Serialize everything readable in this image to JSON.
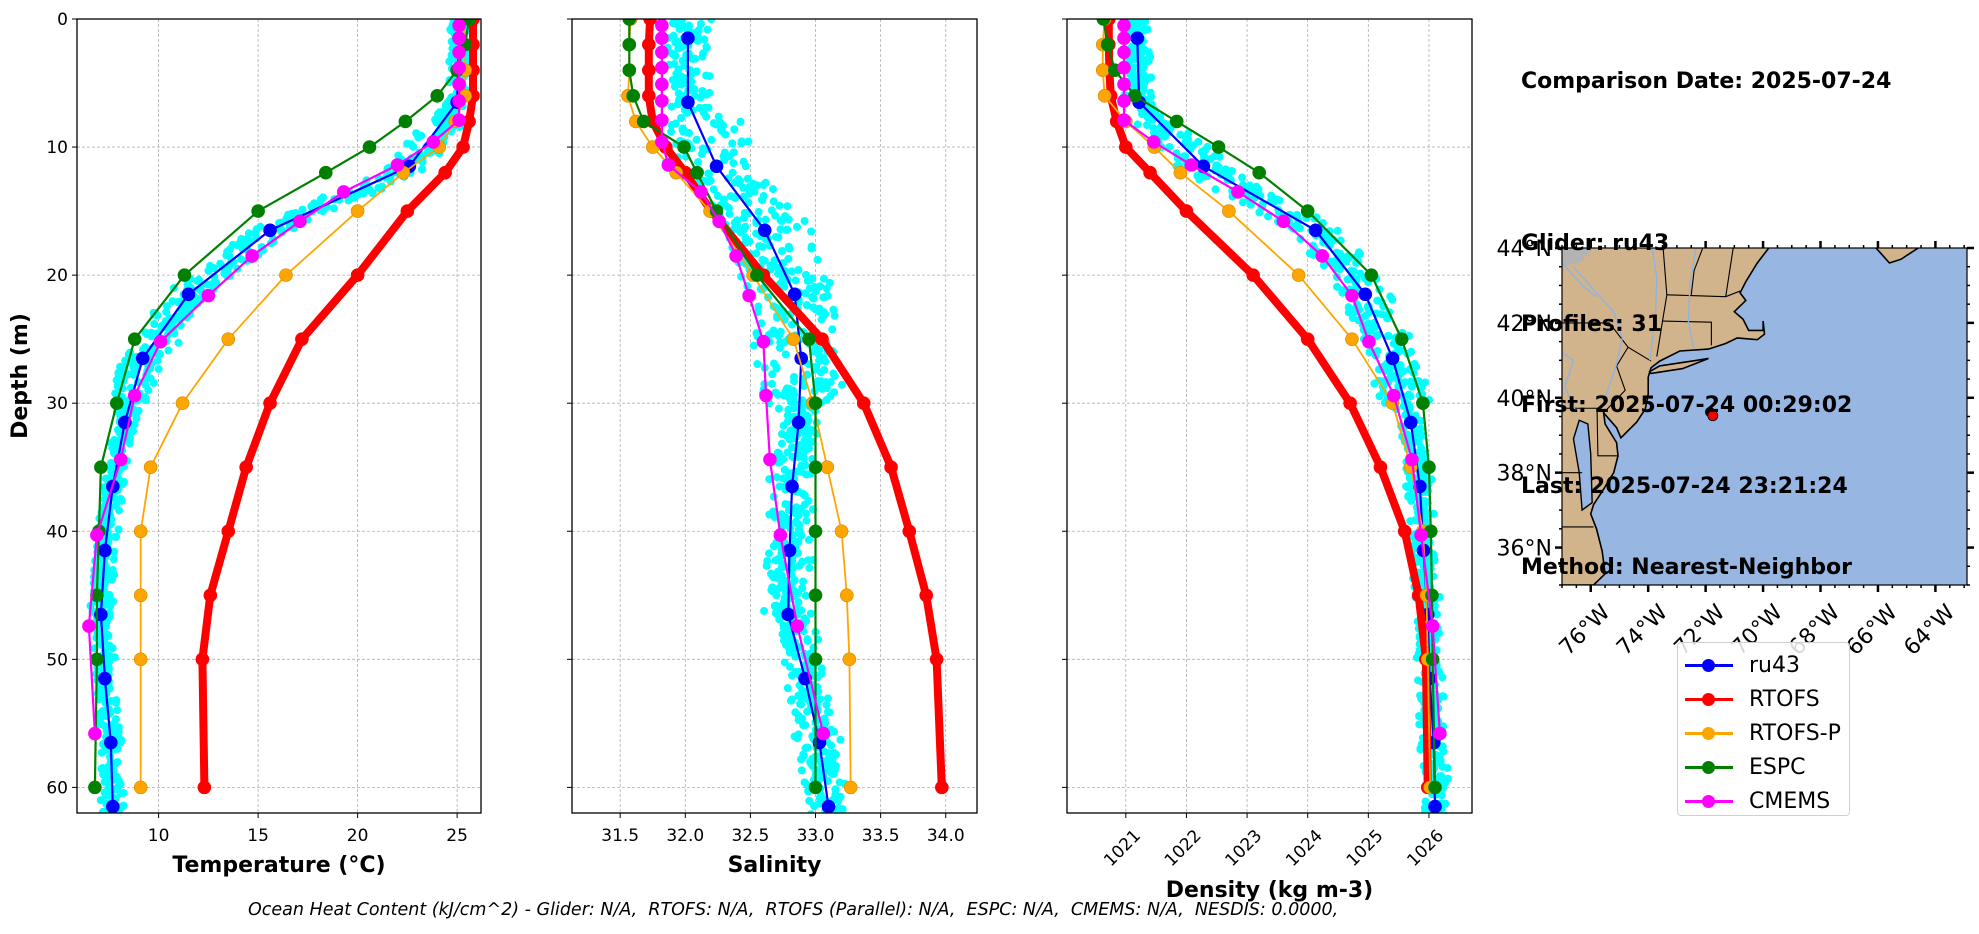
{
  "info": {
    "comparison_date": "Comparison Date: 2025-07-24",
    "glider": "Glider: ru43",
    "profiles": "Profiles: 31",
    "first": "First: 2025-07-24 00:29:02",
    "last": "Last: 2025-07-24 23:21:24",
    "method": "Method: Nearest-Neighbor"
  },
  "footer": "Ocean Heat Content (kJ/cm^2) - Glider: N/A,  RTOFS: N/A,  RTOFS (Parallel): N/A,  ESPC: N/A,  CMEMS: N/A,  NESDIS: 0.0000,",
  "legend": [
    {
      "label": "ru43",
      "color": "#0000ff"
    },
    {
      "label": "RTOFS",
      "color": "#ff0000"
    },
    {
      "label": "RTOFS-P",
      "color": "#ffa500"
    },
    {
      "label": "ESPC",
      "color": "#008000"
    },
    {
      "label": "CMEMS",
      "color": "#ff00ff"
    }
  ],
  "colors": {
    "glider_scatter": "#00ffff",
    "land": "#d2b48c",
    "ocean": "#97b6e1",
    "grid": "#b0b0b0"
  },
  "chart_data": [
    {
      "type": "line",
      "title": "",
      "xlabel": "Temperature (°C)",
      "ylabel": "Depth (m)",
      "xlim": [
        5.9,
        26.2
      ],
      "ylim": [
        62,
        0
      ],
      "y_inverted": true,
      "grid": true,
      "xticks": [
        10,
        15,
        20,
        25
      ],
      "yticks": [
        0,
        10,
        20,
        30,
        40,
        50,
        60
      ],
      "series": [
        {
          "name": "ru43",
          "depth": [
            1.5,
            6.5,
            11.5,
            16.5,
            21.5,
            26.5,
            31.5,
            36.5,
            41.5,
            46.5,
            51.5,
            56.5,
            61.5
          ],
          "values": [
            25.1,
            25.0,
            22.6,
            15.6,
            11.5,
            9.2,
            8.3,
            7.7,
            7.3,
            7.1,
            7.3,
            7.6,
            7.7
          ]
        },
        {
          "name": "RTOFS",
          "depth": [
            0,
            2,
            4,
            6,
            8,
            10,
            12,
            15,
            20,
            25,
            30,
            35,
            40,
            45,
            50,
            60
          ],
          "values": [
            25.8,
            25.8,
            25.8,
            25.8,
            25.6,
            25.3,
            24.4,
            22.5,
            20.0,
            17.2,
            15.6,
            14.4,
            13.5,
            12.6,
            12.2,
            12.3
          ]
        },
        {
          "name": "RTOFS-P",
          "depth": [
            0,
            2,
            4,
            6,
            8,
            10,
            12,
            15,
            20,
            25,
            30,
            35,
            40,
            45,
            50,
            60
          ],
          "values": [
            25.4,
            25.4,
            25.4,
            25.4,
            24.9,
            24.1,
            22.3,
            20.0,
            16.4,
            13.5,
            11.2,
            9.6,
            9.1,
            9.1,
            9.1,
            9.1
          ]
        },
        {
          "name": "ESPC",
          "depth": [
            0,
            2,
            4,
            6,
            8,
            10,
            12,
            15,
            20,
            25,
            30,
            35,
            40,
            45,
            50,
            60
          ],
          "values": [
            25.6,
            25.4,
            25.0,
            24.0,
            22.4,
            20.6,
            18.4,
            15.0,
            11.3,
            8.8,
            7.9,
            7.1,
            7.0,
            6.9,
            6.9,
            6.8
          ]
        },
        {
          "name": "CMEMS",
          "depth": [
            0.5,
            1.5,
            2.6,
            3.8,
            5.1,
            6.4,
            7.9,
            9.6,
            11.4,
            13.5,
            15.8,
            18.5,
            21.6,
            25.2,
            29.4,
            34.4,
            40.3,
            47.4,
            55.8
          ],
          "values": [
            25.1,
            25.1,
            25.1,
            25.1,
            25.1,
            25.1,
            25.1,
            23.8,
            22.0,
            19.3,
            17.1,
            14.7,
            12.5,
            10.1,
            8.8,
            8.1,
            6.9,
            6.5,
            6.8
          ]
        }
      ],
      "glider_scatter": {
        "name": "ru43 profiles",
        "spread": 0.9
      }
    },
    {
      "type": "line",
      "title": "",
      "xlabel": "Salinity",
      "ylabel": "",
      "xlim": [
        31.13,
        34.24
      ],
      "ylim": [
        62,
        0
      ],
      "y_inverted": true,
      "grid": true,
      "xticks": [
        31.5,
        32.0,
        32.5,
        33.0,
        33.5,
        34.0
      ],
      "xtick_labels": [
        "31.5",
        "32.0",
        "32.5",
        "33.0",
        "33.5",
        "34.0"
      ],
      "yticks": [
        0,
        10,
        20,
        30,
        40,
        50,
        60
      ],
      "series": [
        {
          "name": "ru43",
          "depth": [
            1.5,
            6.5,
            11.5,
            16.5,
            21.5,
            26.5,
            31.5,
            36.5,
            41.5,
            46.5,
            51.5,
            56.5,
            61.5
          ],
          "values": [
            32.02,
            32.02,
            32.24,
            32.61,
            32.84,
            32.89,
            32.87,
            32.82,
            32.8,
            32.79,
            32.92,
            33.03,
            33.1
          ]
        },
        {
          "name": "RTOFS",
          "depth": [
            0,
            2,
            4,
            6,
            8,
            10,
            12,
            15,
            20,
            25,
            30,
            35,
            40,
            45,
            50,
            60
          ],
          "values": [
            31.73,
            31.72,
            31.72,
            31.72,
            31.75,
            31.85,
            32.0,
            32.2,
            32.6,
            33.05,
            33.37,
            33.58,
            33.72,
            33.85,
            33.93,
            33.97
          ]
        },
        {
          "name": "RTOFS-P",
          "depth": [
            0,
            2,
            4,
            6,
            8,
            10,
            12,
            15,
            20,
            25,
            30,
            35,
            40,
            45,
            50,
            60
          ],
          "values": [
            31.58,
            31.57,
            31.57,
            31.56,
            31.62,
            31.75,
            31.93,
            32.19,
            32.52,
            32.83,
            32.98,
            33.09,
            33.2,
            33.24,
            33.26,
            33.27
          ]
        },
        {
          "name": "ESPC",
          "depth": [
            0,
            2,
            4,
            6,
            8,
            10,
            12,
            15,
            20,
            25,
            30,
            35,
            40,
            45,
            50,
            60
          ],
          "values": [
            31.57,
            31.57,
            31.57,
            31.6,
            31.68,
            31.99,
            32.09,
            32.24,
            32.55,
            32.95,
            33.0,
            33.0,
            33.0,
            33.0,
            33.0,
            33.0
          ]
        },
        {
          "name": "CMEMS",
          "depth": [
            0.5,
            1.5,
            2.6,
            3.8,
            5.1,
            6.4,
            7.9,
            9.6,
            11.4,
            13.5,
            15.8,
            18.5,
            21.6,
            25.2,
            29.4,
            34.4,
            40.3,
            47.4,
            55.8
          ],
          "values": [
            31.82,
            31.82,
            31.82,
            31.82,
            31.82,
            31.82,
            31.82,
            31.82,
            31.87,
            32.12,
            32.26,
            32.39,
            32.49,
            32.6,
            32.62,
            32.65,
            32.73,
            32.86,
            33.06
          ]
        }
      ],
      "glider_scatter": {
        "name": "ru43 profiles",
        "spread": 0.28
      }
    },
    {
      "type": "line",
      "title": "",
      "xlabel": "Density (kg m-3)",
      "ylabel": "",
      "xlim": [
        1020.03,
        1026.71
      ],
      "ylim": [
        62,
        0
      ],
      "y_inverted": true,
      "grid": true,
      "xticks": [
        1021,
        1022,
        1023,
        1024,
        1025,
        1026
      ],
      "xtick_rotation": 45,
      "yticks": [
        0,
        10,
        20,
        30,
        40,
        50,
        60
      ],
      "series": [
        {
          "name": "ru43",
          "depth": [
            1.5,
            6.5,
            11.5,
            16.5,
            21.5,
            26.5,
            31.5,
            36.5,
            41.5,
            46.5,
            51.5,
            56.5,
            61.5
          ],
          "values": [
            1021.19,
            1021.22,
            1022.28,
            1024.13,
            1024.95,
            1025.4,
            1025.7,
            1025.85,
            1025.91,
            1025.98,
            1026.01,
            1026.08,
            1026.1
          ]
        },
        {
          "name": "RTOFS",
          "depth": [
            0,
            2,
            4,
            6,
            8,
            10,
            12,
            15,
            20,
            25,
            30,
            35,
            40,
            45,
            50,
            60
          ],
          "values": [
            1020.72,
            1020.72,
            1020.73,
            1020.75,
            1020.85,
            1021.0,
            1021.4,
            1022.0,
            1023.1,
            1024.0,
            1024.7,
            1025.2,
            1025.6,
            1025.83,
            1025.95,
            1025.98
          ]
        },
        {
          "name": "RTOFS-P",
          "depth": [
            0,
            2,
            4,
            6,
            8,
            10,
            12,
            15,
            20,
            25,
            30,
            35,
            40,
            45,
            50,
            60
          ],
          "values": [
            1020.65,
            1020.62,
            1020.62,
            1020.65,
            1021.0,
            1021.47,
            1021.9,
            1022.7,
            1023.85,
            1024.73,
            1025.4,
            1025.7,
            1025.9,
            1025.96,
            1025.98,
            1026.02
          ]
        },
        {
          "name": "ESPC",
          "depth": [
            0,
            2,
            4,
            6,
            8,
            10,
            12,
            15,
            20,
            25,
            30,
            35,
            40,
            45,
            50,
            60
          ],
          "values": [
            1020.63,
            1020.7,
            1020.82,
            1021.15,
            1021.84,
            1022.53,
            1023.2,
            1024.0,
            1025.05,
            1025.55,
            1025.9,
            1026.0,
            1026.03,
            1026.05,
            1026.06,
            1026.1
          ]
        },
        {
          "name": "CMEMS",
          "depth": [
            0.5,
            1.5,
            2.6,
            3.8,
            5.1,
            6.4,
            7.9,
            9.6,
            11.4,
            13.5,
            15.8,
            18.5,
            21.6,
            25.2,
            29.4,
            34.4,
            40.3,
            47.4,
            55.8
          ],
          "values": [
            1020.97,
            1020.97,
            1020.97,
            1020.97,
            1020.97,
            1020.97,
            1020.97,
            1021.46,
            1022.08,
            1022.85,
            1023.6,
            1024.24,
            1024.73,
            1025.01,
            1025.42,
            1025.72,
            1025.87,
            1026.06,
            1026.18
          ]
        }
      ],
      "glider_scatter": {
        "name": "ru43 profiles",
        "spread": 0.35
      }
    },
    {
      "type": "map",
      "lon_range": [
        -77.0,
        -62.9
      ],
      "lat_range": [
        35.0,
        44.0
      ],
      "xticks": [
        -76,
        -74,
        -72,
        -70,
        -68,
        -66,
        -64
      ],
      "xtick_labels": [
        "76°W",
        "74°W",
        "72°W",
        "70°W",
        "68°W",
        "66°W",
        "64°W"
      ],
      "yticks": [
        36,
        38,
        40,
        42,
        44
      ],
      "ytick_labels": [
        "36°N",
        "38°N",
        "40°N",
        "42°N",
        "44°N"
      ],
      "glider_track": [
        [
          -71.85,
          39.62
        ],
        [
          -71.75,
          39.52
        ]
      ],
      "glider_last": [
        -71.75,
        39.52
      ]
    }
  ]
}
